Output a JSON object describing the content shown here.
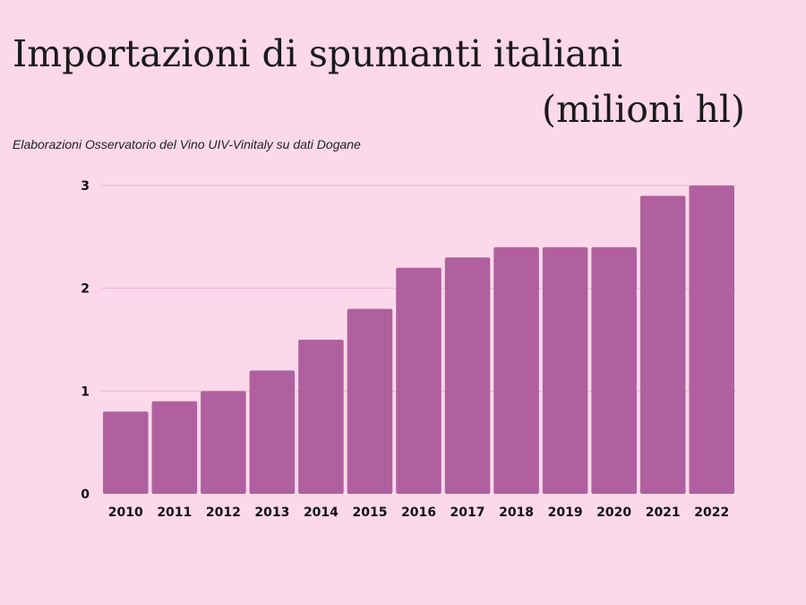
{
  "header": {
    "title_line1": "Importazioni di spumanti italiani",
    "title_line2": "(milioni hl)",
    "subtitle": "Elaborazioni Osservatorio del Vino UIV-Vinitaly su dati Dogane"
  },
  "colors": {
    "background": "#fcd9ea",
    "bar": "#b0609e",
    "gridline": "#e8b8d0"
  },
  "chart_data": {
    "type": "bar",
    "categories": [
      "2010",
      "2011",
      "2012",
      "2013",
      "2014",
      "2015",
      "2016",
      "2017",
      "2018",
      "2019",
      "2020",
      "2021",
      "2022"
    ],
    "values": [
      0.8,
      0.9,
      1.0,
      1.2,
      1.5,
      1.8,
      2.2,
      2.3,
      2.4,
      2.4,
      2.4,
      2.9,
      3.0
    ],
    "yticks": [
      0,
      1,
      2,
      3
    ],
    "ylim": [
      0,
      3
    ],
    "title": "Importazioni di spumanti italiani (milioni hl)",
    "xlabel": "",
    "ylabel": "",
    "grid": true,
    "legend": "none"
  }
}
